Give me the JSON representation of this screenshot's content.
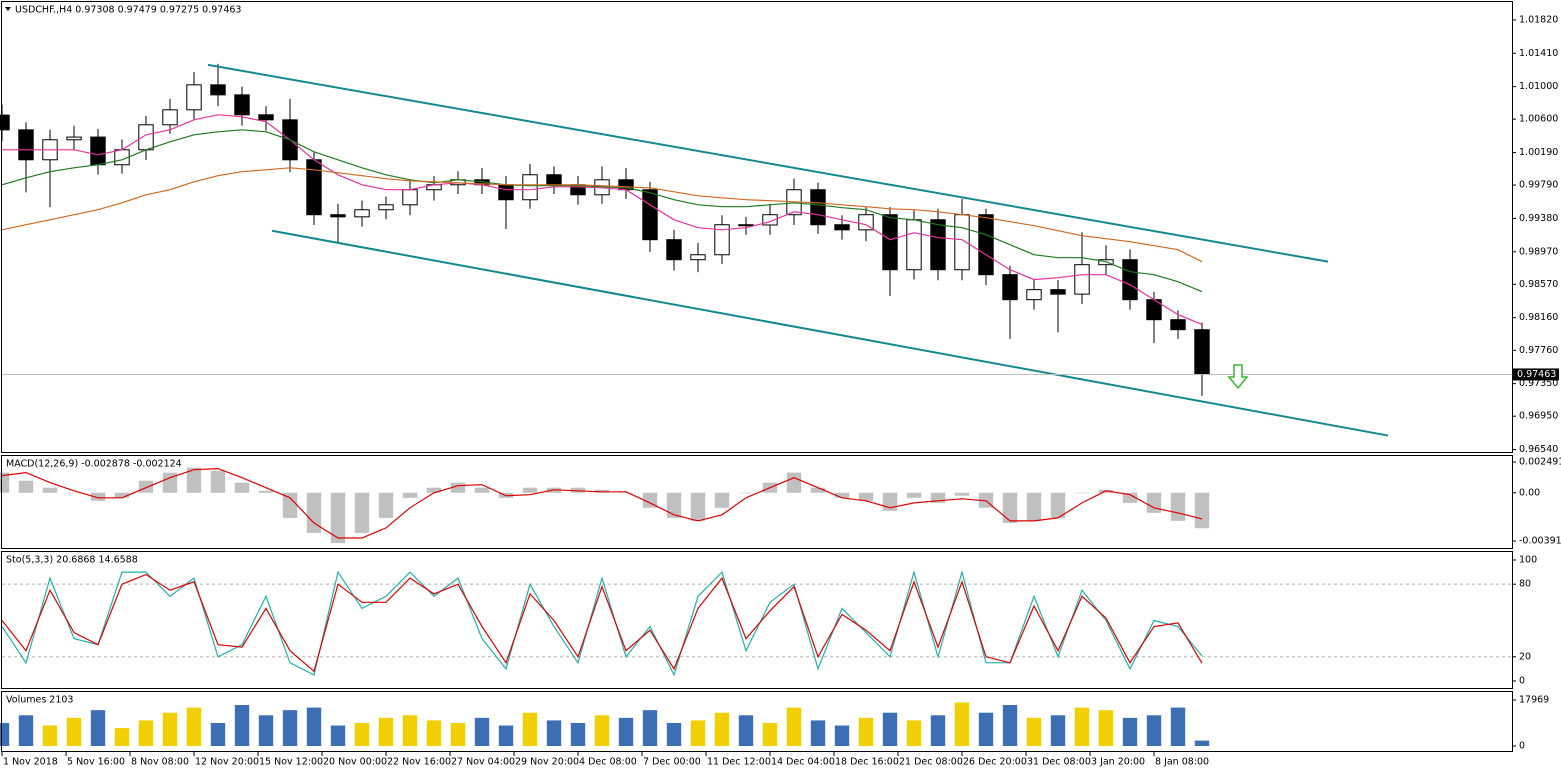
{
  "chart_data": [
    {
      "type": "candlestick",
      "title": "USDCHF.,H4  0.97308 0.97479 0.97275 0.97463",
      "x": [
        0,
        6,
        12,
        18,
        24,
        30,
        36,
        42,
        48,
        54,
        60,
        66,
        72,
        78,
        84,
        90,
        96,
        102,
        108,
        114,
        120,
        126,
        132,
        138,
        144,
        150,
        156,
        162,
        168,
        174,
        180,
        186,
        192,
        198,
        204,
        210,
        216,
        222,
        228,
        234,
        240,
        246,
        252,
        258,
        264,
        270,
        276,
        282,
        288,
        294,
        300
      ],
      "open": [
        1.0065,
        1.00469,
        1.00101,
        1.00347,
        1.0038,
        1.0004,
        1.00224,
        1.00531,
        1.00715,
        1.01022,
        1.00899,
        1.00654,
        1.00592,
        1.00101,
        0.99426,
        0.994,
        0.99487,
        0.99548,
        0.99733,
        0.99794,
        0.99855,
        0.99794,
        0.9961,
        0.99917,
        0.99794,
        0.99671,
        0.99855,
        0.99733,
        0.99119,
        0.98873,
        0.98934,
        0.99303,
        0.993,
        0.99426,
        0.99733,
        0.99303,
        0.9924,
        0.99426,
        0.9875,
        0.99364,
        0.9875,
        0.99426,
        0.98689,
        0.98382,
        0.98505,
        0.9845,
        0.98812,
        0.98873,
        0.98382,
        0.98136,
        0.98013
      ],
      "high": [
        1.0078,
        1.0056,
        1.0047,
        1.0052,
        1.0048,
        1.0035,
        1.0064,
        1.0085,
        1.0118,
        1.0128,
        1.01,
        1.0076,
        1.0085,
        1.002,
        0.9956,
        0.996,
        0.9965,
        0.9985,
        0.999,
        0.9996,
        1.0,
        0.999,
        1.0005,
        1.0002,
        0.999,
        1.0002,
        1.0,
        0.9983,
        0.9924,
        0.9908,
        0.9942,
        0.994,
        0.9956,
        0.9987,
        0.9982,
        0.9942,
        0.9952,
        0.9952,
        0.9948,
        0.995,
        0.9962,
        0.995,
        0.988,
        0.9864,
        0.9862,
        0.9921,
        0.9905,
        0.99,
        0.9848,
        0.9825,
        0.981
      ],
      "low": [
        1.0033,
        0.997,
        0.9952,
        1.0022,
        0.9992,
        0.9993,
        1.001,
        1.0042,
        1.006,
        1.0076,
        1.0052,
        1.0046,
        0.9995,
        0.993,
        0.9908,
        0.9928,
        0.9937,
        0.9942,
        0.996,
        0.9968,
        0.9968,
        0.9925,
        0.995,
        0.9968,
        0.9955,
        0.9956,
        0.9962,
        0.9897,
        0.9874,
        0.9872,
        0.9882,
        0.9918,
        0.9918,
        0.993,
        0.9919,
        0.9912,
        0.991,
        0.9843,
        0.9863,
        0.9862,
        0.9862,
        0.9856,
        0.979,
        0.9826,
        0.9798,
        0.9833,
        0.9868,
        0.9826,
        0.9785,
        0.979,
        0.972
      ],
      "close": [
        1.00469,
        1.00101,
        1.00347,
        1.0038,
        1.0004,
        1.00224,
        1.00531,
        1.00715,
        1.01022,
        1.00899,
        1.00654,
        1.00592,
        1.00101,
        0.99426,
        0.994,
        0.99487,
        0.99548,
        0.99733,
        0.99794,
        0.99855,
        0.99794,
        0.9961,
        0.99917,
        0.99794,
        0.99671,
        0.99855,
        0.99733,
        0.99119,
        0.98873,
        0.98934,
        0.99303,
        0.993,
        0.99426,
        0.99733,
        0.99303,
        0.9924,
        0.99426,
        0.9875,
        0.99364,
        0.9875,
        0.99426,
        0.98689,
        0.98382,
        0.98505,
        0.9845,
        0.98812,
        0.98873,
        0.98382,
        0.98136,
        0.98013,
        0.97463
      ],
      "series": [
        {
          "type": "line",
          "color": "#e8339b",
          "values": [
            1.00224,
            1.00224,
            1.00224,
            1.00224,
            1.00162,
            1.00224,
            1.00408,
            1.00469,
            1.00592,
            1.00654,
            1.00629,
            1.00568,
            1.00347,
            1.00101,
            0.99917,
            0.99794,
            0.99733,
            0.99733,
            0.99794,
            0.99818,
            0.99794,
            0.99733,
            0.99733,
            0.99769,
            0.99769,
            0.99757,
            0.99733,
            0.99548,
            0.99364,
            0.99266,
            0.99241,
            0.99266,
            0.9934,
            0.99462,
            0.99426,
            0.99364,
            0.99303,
            0.99119,
            0.99205,
            0.99143,
            0.99119,
            0.98934,
            0.9875,
            0.98628,
            0.98652,
            0.98689,
            0.98689,
            0.98566,
            0.98382,
            0.98198,
            0.98075
          ]
        },
        {
          "type": "line",
          "color": "#1e7a1e",
          "values": [
            0.99794,
            0.9988,
            0.99954,
            1.00003,
            1.0004,
            1.00101,
            1.00224,
            1.00322,
            1.00408,
            1.00445,
            1.00469,
            1.00445,
            1.00347,
            1.00199,
            1.00101,
            1.00003,
            0.99917,
            0.99855,
            0.99818,
            0.99855,
            0.99831,
            0.99794,
            0.99782,
            0.99782,
            0.99782,
            0.99769,
            0.99757,
            0.99696,
            0.9961,
            0.99548,
            0.99524,
            0.99524,
            0.99548,
            0.99573,
            0.99548,
            0.99512,
            0.99487,
            0.99389,
            0.99364,
            0.99303,
            0.99266,
            0.9918,
            0.99057,
            0.98934,
            0.98898,
            0.98898,
            0.98849,
            0.98726,
            0.98689,
            0.98603,
            0.9848
          ]
        },
        {
          "type": "line",
          "color": "#d2691e",
          "values": [
            0.99241,
            0.99303,
            0.99364,
            0.99426,
            0.99487,
            0.99573,
            0.99671,
            0.99733,
            0.99831,
            0.99905,
            0.99954,
            0.99978,
            1.00003,
            0.99978,
            0.99941,
            0.99905,
            0.99868,
            0.99843,
            0.99831,
            0.99818,
            0.99806,
            0.99794,
            0.99794,
            0.99794,
            0.99794,
            0.99782,
            0.99769,
            0.99757,
            0.99708,
            0.99659,
            0.99634,
            0.9961,
            0.99598,
            0.99585,
            0.99573,
            0.99548,
            0.99524,
            0.99499,
            0.99487,
            0.99462,
            0.99426,
            0.99389,
            0.9934,
            0.99291,
            0.99229,
            0.99168,
            0.99131,
            0.99094,
            0.99045,
            0.98996,
            0.98849
          ]
        }
      ],
      "trendlines": [
        {
          "color": "#13898f",
          "x": [
            51.5,
            331.5
          ],
          "values": [
            1.01267,
            0.98849
          ]
        },
        {
          "color": "#13898f",
          "x": [
            67.5,
            346.5
          ],
          "values": [
            0.99229,
            0.96712
          ]
        }
      ],
      "last_price": {
        "value": 0.97463,
        "label": "0.97463"
      },
      "xlim": [
        0,
        377.5
      ],
      "xticks": [
        {
          "value": 0,
          "label": "1 Nov 2018"
        },
        {
          "value": 16,
          "label": "5 Nov 16:00"
        },
        {
          "value": 32,
          "label": "8 Nov 08:00"
        },
        {
          "value": 48,
          "label": "12 Nov 20:00"
        },
        {
          "value": 64,
          "label": "15 Nov 12:00"
        },
        {
          "value": 80,
          "label": "20 Nov 00:00"
        },
        {
          "value": 96,
          "label": "22 Nov 16:00"
        },
        {
          "value": 112,
          "label": "27 Nov 04:00"
        },
        {
          "value": 128,
          "label": "29 Nov 20:00"
        },
        {
          "value": 144,
          "label": "4 Dec 08:00"
        },
        {
          "value": 160,
          "label": "7 Dec 00:00"
        },
        {
          "value": 176,
          "label": "11 Dec 12:00"
        },
        {
          "value": 192,
          "label": "14 Dec 04:00"
        },
        {
          "value": 208,
          "label": "18 Dec 16:00"
        },
        {
          "value": 224,
          "label": "21 Dec 08:00"
        },
        {
          "value": 240,
          "label": "26 Dec 20:00"
        },
        {
          "value": 256,
          "label": "31 Dec 08:00"
        },
        {
          "value": 272,
          "label": "3 Jan 20:00"
        },
        {
          "value": 288,
          "label": "8 Jan 08:00"
        }
      ],
      "ylim": [
        0.9651,
        1.0204
      ],
      "yticks": [
        {
          "value": 1.0182,
          "label": "1.01820"
        },
        {
          "value": 1.0141,
          "label": "1.01410"
        },
        {
          "value": 1.01,
          "label": "1.01000"
        },
        {
          "value": 1.006,
          "label": "1.00600"
        },
        {
          "value": 1.0019,
          "label": "1.00190"
        },
        {
          "value": 0.9979,
          "label": "0.99790"
        },
        {
          "value": 0.9938,
          "label": "0.99380"
        },
        {
          "value": 0.9897,
          "label": "0.98970"
        },
        {
          "value": 0.9857,
          "label": "0.98570"
        },
        {
          "value": 0.9816,
          "label": "0.98160"
        },
        {
          "value": 0.9776,
          "label": "0.97760"
        },
        {
          "value": 0.9735,
          "label": "0.97350"
        },
        {
          "value": 0.9695,
          "label": "0.96950"
        },
        {
          "value": 0.9654,
          "label": "0.96540"
        }
      ],
      "up_color": "#ffffff",
      "down_color": "#000000"
    },
    {
      "type": "bar",
      "title": "MACD(12,26,9) -0.002878 -0.002124",
      "series": [
        {
          "type": "bar",
          "color": "#c0c0c0",
          "values": [
            0.00163,
            0.00098,
            0.00041,
            0,
            -0.00065,
            -0.00041,
            0.00098,
            0.00163,
            0.00204,
            0.00179,
            0.00082,
            0.00016,
            -0.00204,
            -0.00326,
            -0.00408,
            -0.00326,
            -0.00204,
            -0.00041,
            0.00041,
            0.00082,
            0.00041,
            -0.00041,
            0.00041,
            0.00041,
            0.00041,
            0.00024,
            0,
            -0.00122,
            -0.00204,
            -0.00228,
            -0.00122,
            0,
            0.00082,
            0.00163,
            0.00041,
            -0.00041,
            -0.00065,
            -0.00147,
            -0.00041,
            -0.00082,
            -0.00024,
            -0.00122,
            -0.00245,
            -0.00228,
            -0.00204,
            0,
            0.00024,
            -0.00082,
            -0.00163,
            -0.00228,
            -0.002878
          ]
        },
        {
          "type": "line",
          "color": "#e00000",
          "values": [
            0.00139,
            0.00163,
            0.00082,
            0.00016,
            -0.00041,
            -0.00041,
            0.00041,
            0.00122,
            0.00187,
            0.00196,
            0.00122,
            0.00041,
            -0.00041,
            -0.00245,
            -0.00367,
            -0.00367,
            -0.00285,
            -0.00122,
            0,
            0.00057,
            0.00065,
            -0.00024,
            -0.00016,
            0.00024,
            0.00016,
            8e-05,
            8e-05,
            -0.00082,
            -0.00179,
            -0.00228,
            -0.00179,
            -0.00041,
            0.00041,
            0.00122,
            0.00041,
            -0.00041,
            -0.00065,
            -0.00122,
            -0.00082,
            -0.00065,
            -0.00049,
            -0.00065,
            -0.00228,
            -0.00228,
            -0.00204,
            -0.00082,
            0.00016,
            -0.00016,
            -0.00122,
            -0.00163,
            -0.002124
          ]
        }
      ],
      "ylim": [
        -0.00448,
        0.00298
      ],
      "yticks": [
        0.002491,
        {
          "value": 0,
          "label": "0.00"
        },
        -0.003914
      ]
    },
    {
      "type": "line",
      "title": "Sto(5,3,3) 20.6868 14.6588",
      "series": [
        {
          "type": "line",
          "color": "#20b2aa",
          "values": [
            45,
            15,
            85,
            35,
            30,
            90,
            90,
            70,
            85,
            20,
            30,
            70,
            15,
            5,
            90,
            60,
            70,
            90,
            70,
            85,
            35,
            10,
            80,
            45,
            15,
            85,
            20,
            45,
            5,
            70,
            90,
            25,
            65,
            80,
            10,
            60,
            40,
            20,
            90,
            20,
            90,
            15,
            15,
            70,
            20,
            75,
            50,
            10,
            50,
            45,
            20.6868
          ]
        },
        {
          "type": "line",
          "color": "#e00000",
          "values": [
            50,
            25,
            75,
            40,
            30,
            80,
            88,
            75,
            82,
            30,
            28,
            60,
            25,
            8,
            80,
            65,
            65,
            85,
            72,
            80,
            45,
            15,
            72,
            50,
            20,
            78,
            25,
            42,
            10,
            60,
            85,
            35,
            58,
            78,
            20,
            55,
            42,
            25,
            82,
            28,
            82,
            20,
            15,
            62,
            25,
            70,
            52,
            15,
            45,
            48,
            14.6588
          ]
        }
      ],
      "levels": [
        80,
        20
      ],
      "ylim": [
        -5.8,
        106.6
      ],
      "yticks": [
        100,
        80,
        20,
        0
      ]
    },
    {
      "type": "bar",
      "title": "Volumes 2103",
      "series": [
        {
          "type": "volume",
          "values": [
            9000,
            12000,
            8000,
            11000,
            14000,
            7000,
            10000,
            13000,
            15000,
            9000,
            16000,
            12000,
            14000,
            15000,
            8000,
            9000,
            11000,
            12000,
            10000,
            9000,
            11000,
            8000,
            13000,
            10000,
            9000,
            12000,
            11000,
            14000,
            9000,
            10000,
            13000,
            12000,
            9000,
            15000,
            10000,
            8000,
            11000,
            13000,
            10000,
            12000,
            17000,
            13000,
            16000,
            11000,
            12000,
            15000,
            14000,
            11000,
            12000,
            15000,
            2103
          ]
        }
      ],
      "up_color": "#f2d000",
      "down_color": "#3c6eb4",
      "ylim": [
        -1953,
        21094
      ],
      "yticks": [
        17969,
        0
      ]
    }
  ]
}
